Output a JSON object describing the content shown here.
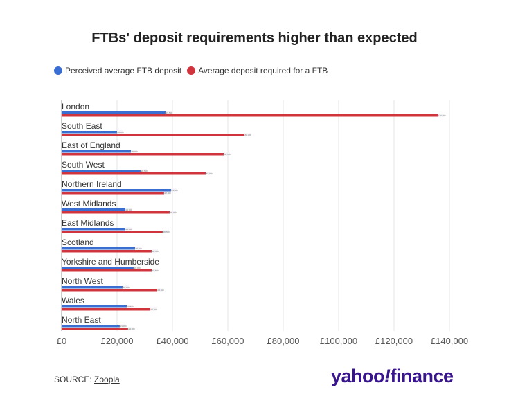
{
  "chart_data": {
    "type": "bar",
    "orientation": "horizontal",
    "title": "FTBs' deposit requirements higher than expected",
    "categories": [
      "London",
      "South East",
      "East of England",
      "South West",
      "Northern Ireland",
      "West Midlands",
      "East Midlands",
      "Scotland",
      "Yorkshire and Humberside",
      "North West",
      "Wales",
      "North East"
    ],
    "series": [
      {
        "name": "Perceived average FTB deposit",
        "color": "#3a6fd1",
        "values": [
          37500,
          20000,
          25000,
          28500,
          39500,
          23000,
          23000,
          26500,
          26000,
          22000,
          23500,
          21000
        ]
      },
      {
        "name": "Average deposit required for a FTB",
        "color": "#d0343c",
        "values": [
          136000,
          66000,
          58500,
          52000,
          37000,
          39000,
          36500,
          32500,
          32500,
          34500,
          32000,
          24000
        ]
      }
    ],
    "xlim": [
      0,
      140000
    ],
    "xticks": [
      0,
      20000,
      40000,
      60000,
      80000,
      100000,
      120000,
      140000
    ],
    "xtick_labels": [
      "£0",
      "£20,000",
      "£40,000",
      "£60,000",
      "£80,000",
      "£100,000",
      "£120,000",
      "£140,000"
    ],
    "grid": true,
    "legend": "top-left"
  },
  "footer": {
    "source_prefix": "SOURCE: ",
    "source_link": "Zoopla",
    "logo": "yahoo!finance"
  }
}
